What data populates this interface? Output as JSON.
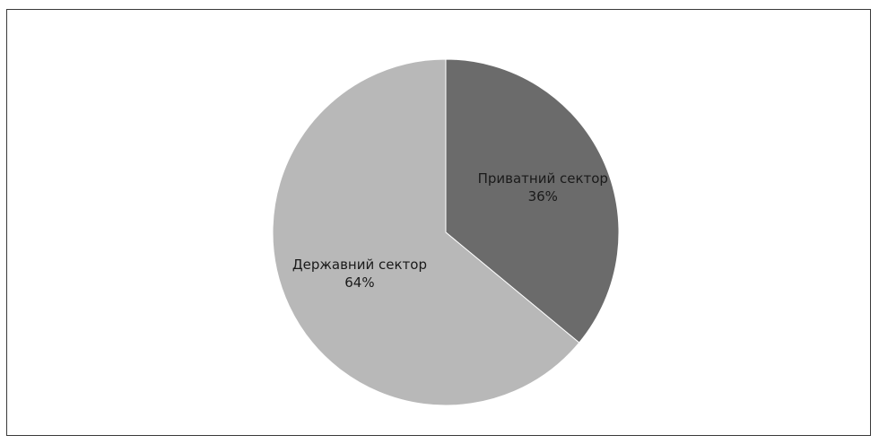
{
  "chart_data": {
    "type": "pie",
    "title": "",
    "start_angle_deg": 0,
    "direction": "clockwise",
    "legend": "none",
    "slices": [
      {
        "label": "Приватний сектор",
        "value": 36,
        "value_label": "36%",
        "color": "#6b6b6b"
      },
      {
        "label": "Державний сектор",
        "value": 64,
        "value_label": "64%",
        "color": "#b8b8b8"
      }
    ]
  }
}
